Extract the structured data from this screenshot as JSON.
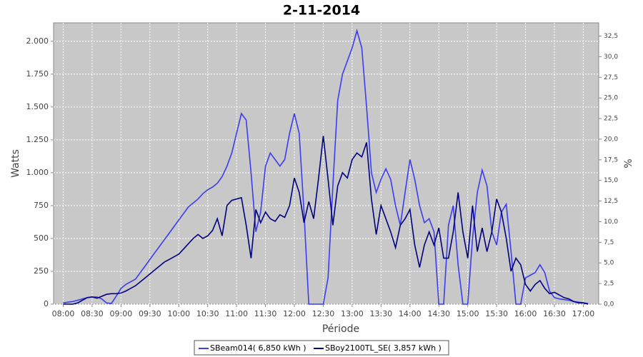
{
  "chart_data": {
    "type": "line",
    "title": "2-11-2014",
    "xlabel": "Période",
    "ylabel": "Watts",
    "y2label": "%",
    "x": [
      "08:00",
      "08:05",
      "08:10",
      "08:15",
      "08:20",
      "08:25",
      "08:30",
      "08:35",
      "08:40",
      "08:45",
      "08:50",
      "08:55",
      "09:00",
      "09:05",
      "09:10",
      "09:15",
      "09:20",
      "09:25",
      "09:30",
      "09:35",
      "09:40",
      "09:45",
      "09:50",
      "09:55",
      "10:00",
      "10:05",
      "10:10",
      "10:15",
      "10:20",
      "10:25",
      "10:30",
      "10:35",
      "10:40",
      "10:45",
      "10:50",
      "10:55",
      "11:00",
      "11:05",
      "11:10",
      "11:15",
      "11:20",
      "11:25",
      "11:30",
      "11:35",
      "11:40",
      "11:45",
      "11:50",
      "11:55",
      "12:00",
      "12:05",
      "12:10",
      "12:15",
      "12:20",
      "12:25",
      "12:30",
      "12:35",
      "12:40",
      "12:45",
      "12:50",
      "12:55",
      "13:00",
      "13:05",
      "13:10",
      "13:15",
      "13:20",
      "13:25",
      "13:30",
      "13:35",
      "13:40",
      "13:45",
      "13:50",
      "13:55",
      "14:00",
      "14:05",
      "14:10",
      "14:15",
      "14:20",
      "14:25",
      "14:30",
      "14:35",
      "14:40",
      "14:45",
      "14:50",
      "14:55",
      "15:00",
      "15:05",
      "15:10",
      "15:15",
      "15:20",
      "15:25",
      "15:30",
      "15:35",
      "15:40",
      "15:45",
      "15:50",
      "15:55",
      "16:00",
      "16:05",
      "16:10",
      "16:15",
      "16:20",
      "16:25",
      "16:30",
      "16:35",
      "16:40",
      "16:45",
      "16:50",
      "16:55",
      "17:00",
      "17:05"
    ],
    "series": [
      {
        "name": "SBeam014( 6,850 kWh )",
        "color": "#3c3cf0",
        "values": [
          10,
          15,
          20,
          30,
          40,
          50,
          55,
          55,
          40,
          10,
          5,
          60,
          120,
          150,
          170,
          190,
          240,
          290,
          340,
          390,
          440,
          490,
          540,
          590,
          640,
          690,
          740,
          770,
          800,
          840,
          870,
          890,
          920,
          970,
          1050,
          1150,
          1300,
          1450,
          1400,
          1000,
          550,
          700,
          1050,
          1150,
          1100,
          1050,
          1100,
          1300,
          1450,
          1300,
          700,
          0,
          0,
          0,
          0,
          200,
          900,
          1550,
          1750,
          1850,
          1950,
          2080,
          1950,
          1500,
          1000,
          850,
          950,
          1030,
          950,
          750,
          600,
          850,
          1100,
          950,
          750,
          620,
          650,
          550,
          0,
          0,
          600,
          750,
          300,
          0,
          0,
          500,
          850,
          1020,
          900,
          550,
          450,
          700,
          760,
          400,
          0,
          0,
          200,
          220,
          240,
          300,
          240,
          100,
          50,
          40,
          35,
          30,
          20,
          15,
          10,
          5
        ]
      },
      {
        "name": "SBoy2100TL_SE( 3,857 kWh )",
        "color": "#000080",
        "values": [
          0,
          0,
          0,
          10,
          30,
          50,
          55,
          45,
          60,
          75,
          80,
          80,
          85,
          100,
          120,
          140,
          170,
          200,
          230,
          260,
          290,
          320,
          340,
          360,
          380,
          420,
          460,
          500,
          530,
          500,
          520,
          560,
          650,
          520,
          750,
          790,
          800,
          810,
          600,
          350,
          720,
          620,
          700,
          650,
          630,
          680,
          660,
          750,
          960,
          850,
          620,
          780,
          650,
          950,
          1280,
          950,
          600,
          900,
          1000,
          960,
          1100,
          1150,
          1120,
          1230,
          800,
          530,
          750,
          650,
          550,
          430,
          600,
          650,
          720,
          450,
          280,
          450,
          550,
          450,
          580,
          350,
          350,
          550,
          850,
          550,
          350,
          750,
          400,
          580,
          400,
          550,
          800,
          700,
          500,
          250,
          350,
          300,
          150,
          100,
          150,
          180,
          120,
          80,
          90,
          70,
          50,
          40,
          20,
          10,
          10,
          0
        ]
      }
    ],
    "xlim": [
      "07:50",
      "17:16"
    ],
    "xticks": [
      "08:00",
      "08:30",
      "09:00",
      "09:30",
      "10:00",
      "10:30",
      "11:00",
      "11:30",
      "12:00",
      "12:30",
      "13:00",
      "13:30",
      "14:00",
      "14:30",
      "15:00",
      "15:30",
      "16:00",
      "16:30",
      "17:00"
    ],
    "ylim": [
      0,
      2140
    ],
    "yticks": [
      0,
      250,
      500,
      750,
      {
        "value": 1000,
        "label": "1.000"
      },
      {
        "value": 1250,
        "label": "1.250"
      },
      {
        "value": 1500,
        "label": "1.500"
      },
      {
        "value": 1750,
        "label": "1.750"
      },
      {
        "value": 2000,
        "label": "2.000"
      }
    ],
    "y2lim": [
      0,
      34.1
    ],
    "y2ticks": [
      {
        "value": 0,
        "label": "0,0"
      },
      {
        "value": 2.5,
        "label": "2,5"
      },
      {
        "value": 5,
        "label": "5,0"
      },
      {
        "value": 7.5,
        "label": "7,5"
      },
      {
        "value": 10,
        "label": "10,0"
      },
      {
        "value": 12.5,
        "label": "12,5"
      },
      {
        "value": 15,
        "label": "15,0"
      },
      {
        "value": 17.5,
        "label": "17,5"
      },
      {
        "value": 20,
        "label": "20,0"
      },
      {
        "value": 22.5,
        "label": "22,5"
      },
      {
        "value": 25,
        "label": "25,0"
      },
      {
        "value": 27.5,
        "label": "27,5"
      },
      {
        "value": 30,
        "label": "30,0"
      },
      {
        "value": 32.5,
        "label": "32,5"
      }
    ],
    "grid": true,
    "legend": "bottom"
  }
}
